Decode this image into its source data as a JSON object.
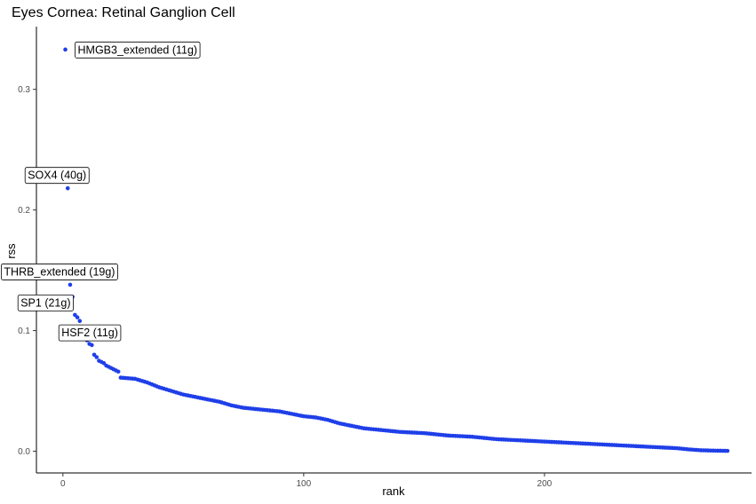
{
  "chart_data": {
    "type": "scatter",
    "title": "Eyes Cornea: Retinal Ganglion Cell",
    "xlabel": "rank",
    "ylabel": "rss",
    "xlim": [
      -11,
      286
    ],
    "ylim": [
      -0.018,
      0.352
    ],
    "x_ticks": [
      0,
      100,
      200
    ],
    "x_tick_labels": [
      "0",
      "100",
      "200"
    ],
    "y_ticks": [
      0.0,
      0.1,
      0.2,
      0.3
    ],
    "y_tick_labels": [
      "0.0",
      "0.1",
      "0.2",
      "0.3"
    ],
    "grid": false,
    "point_color": "#1f3fe8",
    "n_points": 276,
    "points": [
      {
        "x": 1,
        "y": 0.333
      },
      {
        "x": 2,
        "y": 0.218
      },
      {
        "x": 3,
        "y": 0.138
      },
      {
        "x": 4,
        "y": 0.128
      },
      {
        "x": 5,
        "y": 0.113
      },
      {
        "x": 6,
        "y": 0.111
      },
      {
        "x": 7,
        "y": 0.108
      },
      {
        "x": 8,
        "y": 0.098
      },
      {
        "x": 9,
        "y": 0.095
      },
      {
        "x": 10,
        "y": 0.092
      },
      {
        "x": 11,
        "y": 0.089
      },
      {
        "x": 12,
        "y": 0.088
      },
      {
        "x": 13,
        "y": 0.08
      },
      {
        "x": 14,
        "y": 0.078
      },
      {
        "x": 15,
        "y": 0.075
      },
      {
        "x": 16,
        "y": 0.074
      },
      {
        "x": 17,
        "y": 0.073
      },
      {
        "x": 18,
        "y": 0.071
      },
      {
        "x": 19,
        "y": 0.07
      },
      {
        "x": 20,
        "y": 0.069
      },
      {
        "x": 21,
        "y": 0.068
      },
      {
        "x": 22,
        "y": 0.067
      },
      {
        "x": 23,
        "y": 0.066
      },
      {
        "x": 24,
        "y": 0.061
      },
      {
        "x": 30,
        "y": 0.06
      },
      {
        "x": 35,
        "y": 0.057
      },
      {
        "x": 40,
        "y": 0.053
      },
      {
        "x": 45,
        "y": 0.05
      },
      {
        "x": 50,
        "y": 0.047
      },
      {
        "x": 55,
        "y": 0.045
      },
      {
        "x": 60,
        "y": 0.043
      },
      {
        "x": 65,
        "y": 0.041
      },
      {
        "x": 70,
        "y": 0.038
      },
      {
        "x": 75,
        "y": 0.036
      },
      {
        "x": 80,
        "y": 0.035
      },
      {
        "x": 85,
        "y": 0.034
      },
      {
        "x": 90,
        "y": 0.033
      },
      {
        "x": 95,
        "y": 0.031
      },
      {
        "x": 100,
        "y": 0.029
      },
      {
        "x": 105,
        "y": 0.028
      },
      {
        "x": 110,
        "y": 0.026
      },
      {
        "x": 115,
        "y": 0.023
      },
      {
        "x": 120,
        "y": 0.021
      },
      {
        "x": 125,
        "y": 0.019
      },
      {
        "x": 130,
        "y": 0.018
      },
      {
        "x": 135,
        "y": 0.017
      },
      {
        "x": 140,
        "y": 0.016
      },
      {
        "x": 145,
        "y": 0.0155
      },
      {
        "x": 150,
        "y": 0.015
      },
      {
        "x": 155,
        "y": 0.014
      },
      {
        "x": 160,
        "y": 0.013
      },
      {
        "x": 165,
        "y": 0.0125
      },
      {
        "x": 170,
        "y": 0.012
      },
      {
        "x": 175,
        "y": 0.011
      },
      {
        "x": 180,
        "y": 0.01
      },
      {
        "x": 185,
        "y": 0.0095
      },
      {
        "x": 190,
        "y": 0.009
      },
      {
        "x": 195,
        "y": 0.0085
      },
      {
        "x": 200,
        "y": 0.008
      },
      {
        "x": 205,
        "y": 0.0075
      },
      {
        "x": 210,
        "y": 0.007
      },
      {
        "x": 215,
        "y": 0.0065
      },
      {
        "x": 220,
        "y": 0.006
      },
      {
        "x": 225,
        "y": 0.0055
      },
      {
        "x": 230,
        "y": 0.005
      },
      {
        "x": 235,
        "y": 0.0045
      },
      {
        "x": 240,
        "y": 0.004
      },
      {
        "x": 245,
        "y": 0.0035
      },
      {
        "x": 250,
        "y": 0.003
      },
      {
        "x": 255,
        "y": 0.0025
      },
      {
        "x": 260,
        "y": 0.0015
      },
      {
        "x": 265,
        "y": 0.0008
      },
      {
        "x": 270,
        "y": 0.0005
      },
      {
        "x": 276,
        "y": 0.0003
      }
    ],
    "annotations": [
      {
        "label": "HMGB3_extended (11g)",
        "x": 1,
        "y": 0.333,
        "placement": "right"
      },
      {
        "label": "SOX4 (40g)",
        "x": 2,
        "y": 0.218,
        "placement": "above"
      },
      {
        "label": "THRB_extended (19g)",
        "x": 3,
        "y": 0.138,
        "placement": "above"
      },
      {
        "label": "SP1 (21g)",
        "x": 5,
        "y": 0.113,
        "placement": "left"
      },
      {
        "label": "HSF2 (11g)",
        "x": 6,
        "y": 0.111,
        "placement": "below-right"
      }
    ]
  }
}
